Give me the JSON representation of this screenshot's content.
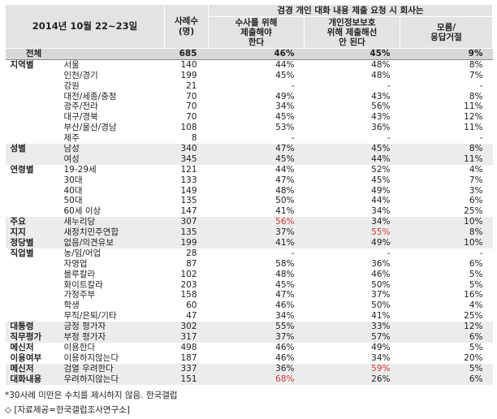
{
  "header": {
    "date": "2014년 10월 22~23일",
    "n_label": "사례수\n(명)",
    "main": "검경 개인 대화 내용 제출 요청 시 회사는",
    "col1": "수사를 위해\n제출해야\n한다",
    "col2": "개인정보보호\n위해 제출해선\n안 된다",
    "col3": "모름/\n응답거절"
  },
  "rows": [
    {
      "group": "전체",
      "sub": "",
      "n": "685",
      "a": "46%",
      "b": "45%",
      "c": "9%",
      "style": "total"
    },
    {
      "group": "지역별",
      "sub": "서울",
      "n": "140",
      "a": "44%",
      "b": "48%",
      "c": "8%",
      "style": "sep"
    },
    {
      "group": "",
      "sub": "인천/경기",
      "n": "199",
      "a": "45%",
      "b": "48%",
      "c": "7%"
    },
    {
      "group": "",
      "sub": "강원",
      "n": "21",
      "a": "-",
      "b": "-",
      "c": "-"
    },
    {
      "group": "",
      "sub": "대전/세종/충청",
      "n": "70",
      "a": "49%",
      "b": "43%",
      "c": "8%"
    },
    {
      "group": "",
      "sub": "광주/전라",
      "n": "70",
      "a": "34%",
      "b": "56%",
      "c": "11%"
    },
    {
      "group": "",
      "sub": "대구/경북",
      "n": "70",
      "a": "45%",
      "b": "43%",
      "c": "12%"
    },
    {
      "group": "",
      "sub": "부산/울산/경남",
      "n": "108",
      "a": "53%",
      "b": "36%",
      "c": "11%"
    },
    {
      "group": "",
      "sub": "제주",
      "n": "8",
      "a": "-",
      "b": "-",
      "c": "-"
    },
    {
      "group": "성별",
      "sub": "남성",
      "n": "340",
      "a": "47%",
      "b": "45%",
      "c": "8%",
      "style": "shade"
    },
    {
      "group": "",
      "sub": "여성",
      "n": "345",
      "a": "45%",
      "b": "44%",
      "c": "11%",
      "style": "shade"
    },
    {
      "group": "연령별",
      "sub": "19-29세",
      "n": "121",
      "a": "44%",
      "b": "52%",
      "c": "4%"
    },
    {
      "group": "",
      "sub": "30대",
      "n": "133",
      "a": "47%",
      "b": "45%",
      "c": "7%"
    },
    {
      "group": "",
      "sub": "40대",
      "n": "149",
      "a": "48%",
      "b": "49%",
      "c": "3%"
    },
    {
      "group": "",
      "sub": "50대",
      "n": "135",
      "a": "50%",
      "b": "44%",
      "c": "6%"
    },
    {
      "group": "",
      "sub": "60세 이상",
      "n": "147",
      "a": "41%",
      "b": "34%",
      "c": "25%"
    },
    {
      "group": "주요",
      "sub": "새누리당",
      "n": "307",
      "a": "56%",
      "b": "34%",
      "c": "10%",
      "style": "shade",
      "red": "a"
    },
    {
      "group": "지지",
      "sub": "새정치민주연합",
      "n": "135",
      "a": "37%",
      "b": "55%",
      "c": "8%",
      "style": "shade",
      "red": "b"
    },
    {
      "group": "정당별",
      "sub": "없음/의견유보",
      "n": "199",
      "a": "41%",
      "b": "49%",
      "c": "10%",
      "style": "shade"
    },
    {
      "group": "직업별",
      "sub": "농/임/어업",
      "n": "28",
      "a": "-",
      "b": "-",
      "c": "-"
    },
    {
      "group": "",
      "sub": "자영업",
      "n": "87",
      "a": "58%",
      "b": "36%",
      "c": "6%"
    },
    {
      "group": "",
      "sub": "블루칼라",
      "n": "102",
      "a": "48%",
      "b": "46%",
      "c": "5%"
    },
    {
      "group": "",
      "sub": "화이트칼라",
      "n": "203",
      "a": "45%",
      "b": "50%",
      "c": "5%"
    },
    {
      "group": "",
      "sub": "가정주부",
      "n": "158",
      "a": "47%",
      "b": "37%",
      "c": "16%"
    },
    {
      "group": "",
      "sub": "학생",
      "n": "60",
      "a": "46%",
      "b": "50%",
      "c": "4%"
    },
    {
      "group": "",
      "sub": "무직/은퇴/기타",
      "n": "47",
      "a": "34%",
      "b": "41%",
      "c": "25%"
    },
    {
      "group": "대통령",
      "sub": "긍정 평가자",
      "n": "302",
      "a": "55%",
      "b": "33%",
      "c": "12%",
      "style": "shade"
    },
    {
      "group": "직무평가",
      "sub": "부정 평가자",
      "n": "317",
      "a": "37%",
      "b": "57%",
      "c": "6%",
      "style": "shade"
    },
    {
      "group": "메신저",
      "sub": "이용한다",
      "n": "498",
      "a": "46%",
      "b": "49%",
      "c": "5%"
    },
    {
      "group": "이용여부",
      "sub": "이용하지않는다",
      "n": "187",
      "a": "46%",
      "b": "34%",
      "c": "20%"
    },
    {
      "group": "메신저",
      "sub": "검열 우려한다",
      "n": "337",
      "a": "36%",
      "b": "59%",
      "c": "5%",
      "style": "shade",
      "red": "b"
    },
    {
      "group": "대화내용",
      "sub": "우려하지않는다",
      "n": "151",
      "a": "68%",
      "b": "26%",
      "c": "6%",
      "style": "shade",
      "red": "a"
    }
  ],
  "footnote": "*30사례 미만은 수치를 제시하지 않음. 한국갤럽",
  "credit": "◇ [자료제공=한국갤럽조사연구소]",
  "colors": {
    "header_bg": "#e3e3e3",
    "shade_bg": "#ececec",
    "total_bg": "#d8d8d8",
    "highlight": "#d23a3a"
  }
}
